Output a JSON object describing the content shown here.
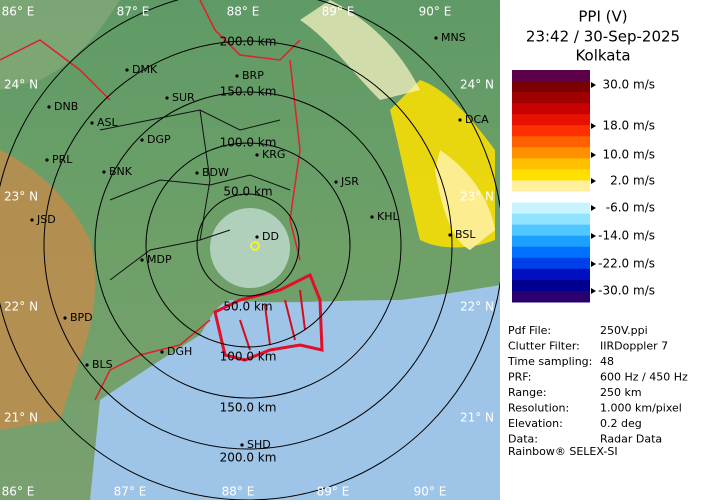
{
  "map": {
    "lon_top": [
      "86° E",
      "87° E",
      "88° E",
      "89° E",
      "90° E"
    ],
    "lon_bottom": [
      "86° E",
      "87° E",
      "88° E",
      "89° E",
      "90° E"
    ],
    "lat_left": [
      "24° N",
      "23° N",
      "22° N",
      "21° N"
    ],
    "lat_right": [
      "24° N",
      "23° N",
      "22° N",
      "21° N"
    ],
    "range_labels": [
      "50.0 km",
      "100.0 km",
      "150.0 km",
      "200.0 km",
      "50.0 km",
      "100.0 km",
      "150.0 km",
      "200.0 km"
    ],
    "cities": [
      "MNS",
      "DMK",
      "BRP",
      "DNB",
      "SUR",
      "ASL",
      "DCA",
      "DGP",
      "KRG",
      "BNK",
      "BDW",
      "PRL",
      "JSR",
      "KHL",
      "JSD",
      "BSL",
      "DD",
      "MDP",
      "BPD",
      "DGH",
      "BLS",
      "SHD"
    ]
  },
  "panel": {
    "title": "PPI (V)",
    "time": "23:42 / 30-Sep-2025",
    "site": "Kolkata",
    "scale": [
      "30.0 m/s",
      "18.0 m/s",
      "10.0 m/s",
      "2.0 m/s",
      "-6.0 m/s",
      "-14.0 m/s",
      "-22.0 m/s",
      "-30.0 m/s"
    ],
    "info": [
      [
        "Pdf File:",
        "250V.ppi"
      ],
      [
        "Clutter Filter:",
        "IIRDoppler 7"
      ],
      [
        "Time sampling:",
        "48"
      ],
      [
        "PRF:",
        "600 Hz / 450 Hz"
      ],
      [
        "Range:",
        "250 km"
      ],
      [
        "Resolution:",
        "1.000 km/pixel"
      ],
      [
        "Elevation:",
        "0.2 deg"
      ],
      [
        "Data:",
        "Radar Data"
      ]
    ],
    "footer": "Rainbow® SELEX-SI"
  }
}
